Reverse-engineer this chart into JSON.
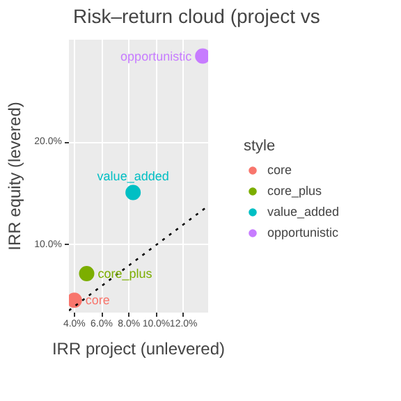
{
  "chart_data": {
    "type": "scatter",
    "title": "Risk–return cloud (project vs",
    "xlabel": "IRR project (unlevered)",
    "ylabel": "IRR equity (levered)",
    "legend_title": "style",
    "xlim": [
      3.6,
      13.8
    ],
    "ylim": [
      3.4,
      30.0
    ],
    "xticks": [
      {
        "value": 4,
        "label": "4.0%"
      },
      {
        "value": 6,
        "label": "6.0%"
      },
      {
        "value": 8,
        "label": "8.0%"
      },
      {
        "value": 10,
        "label": "10.0%"
      },
      {
        "value": 12,
        "label": "12.0%"
      }
    ],
    "yticks": [
      {
        "value": 10,
        "label": "10.0%"
      },
      {
        "value": 20,
        "label": "20.0%"
      }
    ],
    "grid": true,
    "legend": "right",
    "marker": "circle",
    "series": [
      {
        "name": "core",
        "color": "#f8766d",
        "x": [
          4.0
        ],
        "values": [
          4.6
        ]
      },
      {
        "name": "core_plus",
        "color": "#7cae00",
        "x": [
          4.9
        ],
        "values": [
          7.2
        ]
      },
      {
        "name": "value_added",
        "color": "#00bfc4",
        "x": [
          8.3
        ],
        "values": [
          15.1
        ]
      },
      {
        "name": "opportunistic",
        "color": "#c77cff",
        "x": [
          13.4
        ],
        "values": [
          28.4
        ]
      },
      {
        "type": "line",
        "color": "#000000",
        "line_style": "dotted",
        "marker": "none",
        "x": [
          3.6,
          13.8
        ],
        "values": [
          3.6,
          13.8
        ]
      }
    ],
    "annotations": [
      {
        "text": "core",
        "x": 4.0,
        "y": 4.6
      },
      {
        "text": "core_plus",
        "x": 4.9,
        "y": 7.2
      },
      {
        "text": "value_added",
        "x": 8.3,
        "y": 15.1
      },
      {
        "text": "opportunistic",
        "x": 13.4,
        "y": 28.4
      }
    ]
  }
}
